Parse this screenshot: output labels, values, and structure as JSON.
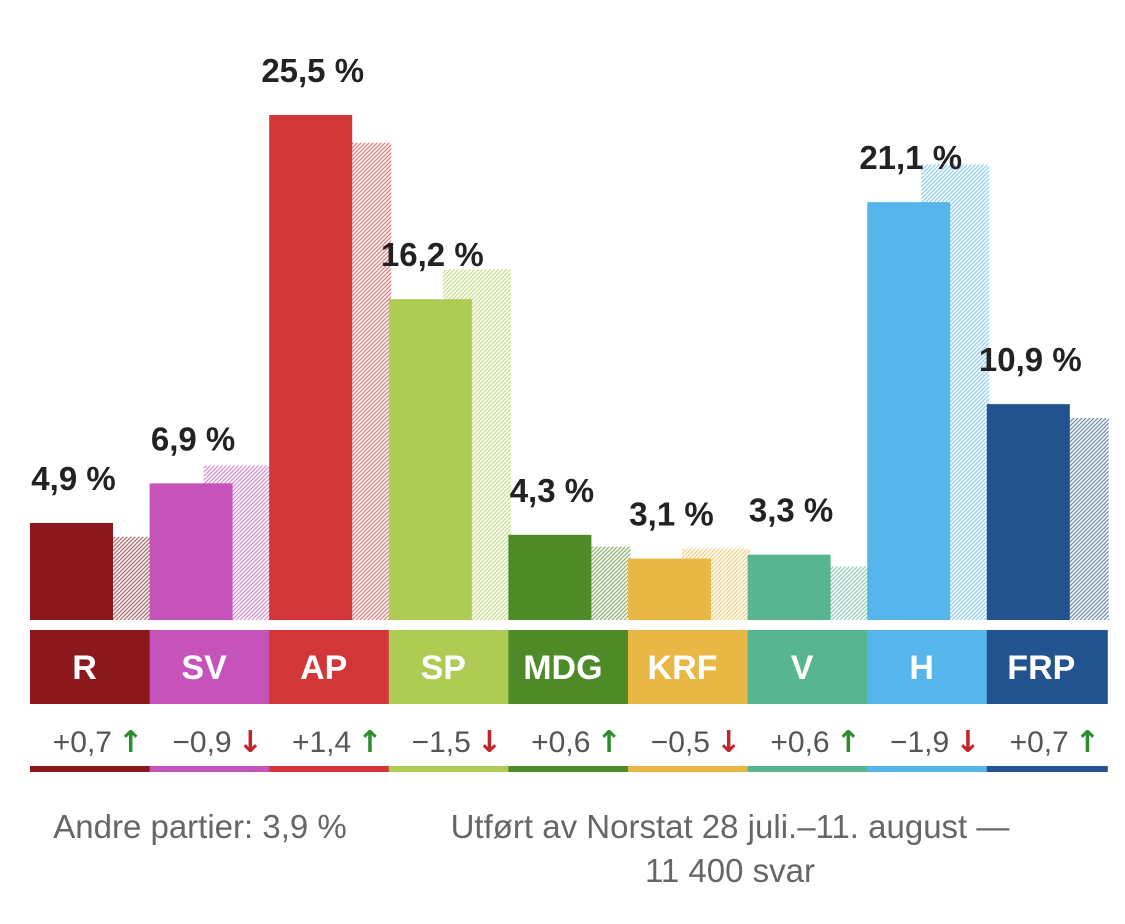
{
  "chart_data": {
    "type": "bar",
    "categories": [
      "R",
      "SV",
      "AP",
      "SP",
      "MDG",
      "KRF",
      "V",
      "H",
      "FRP"
    ],
    "series": [
      {
        "values": [
          4.9,
          6.9,
          25.5,
          16.2,
          4.3,
          3.1,
          3.3,
          21.1,
          10.9
        ]
      },
      {
        "values": [
          4.2,
          7.8,
          24.1,
          17.7,
          3.7,
          3.6,
          2.7,
          23.0,
          10.2
        ]
      }
    ],
    "value_labels": [
      "4,9 %",
      "6,9 %",
      "25,5 %",
      "16,2 %",
      "4,3 %",
      "3,1 %",
      "3,3 %",
      "21,1 %",
      "10,9 %"
    ],
    "changes": [
      {
        "text": "+0,7",
        "direction": "up"
      },
      {
        "text": "−0,9",
        "direction": "down"
      },
      {
        "text": "+1,4",
        "direction": "up"
      },
      {
        "text": "−1,5",
        "direction": "down"
      },
      {
        "text": "+0,6",
        "direction": "up"
      },
      {
        "text": "−0,5",
        "direction": "down"
      },
      {
        "text": "+0,6",
        "direction": "up"
      },
      {
        "text": "−1,9",
        "direction": "down"
      },
      {
        "text": "+0,7",
        "direction": "up"
      }
    ],
    "colors": [
      "#8b181d",
      "#c653b9",
      "#d33638",
      "#aecb54",
      "#4e8a27",
      "#e8b744",
      "#58b591",
      "#56b6ec",
      "#22538f"
    ],
    "arrow_colors": {
      "up": "#2e8b2e",
      "down": "#c0262c"
    },
    "ylim": [
      0,
      27
    ],
    "grid": false
  },
  "footer": {
    "others": "Andre partier: 3,9 %",
    "source_line1": "Utført av Norstat 28 juli.–11. august  —",
    "source_line2": "11 400 svar"
  }
}
